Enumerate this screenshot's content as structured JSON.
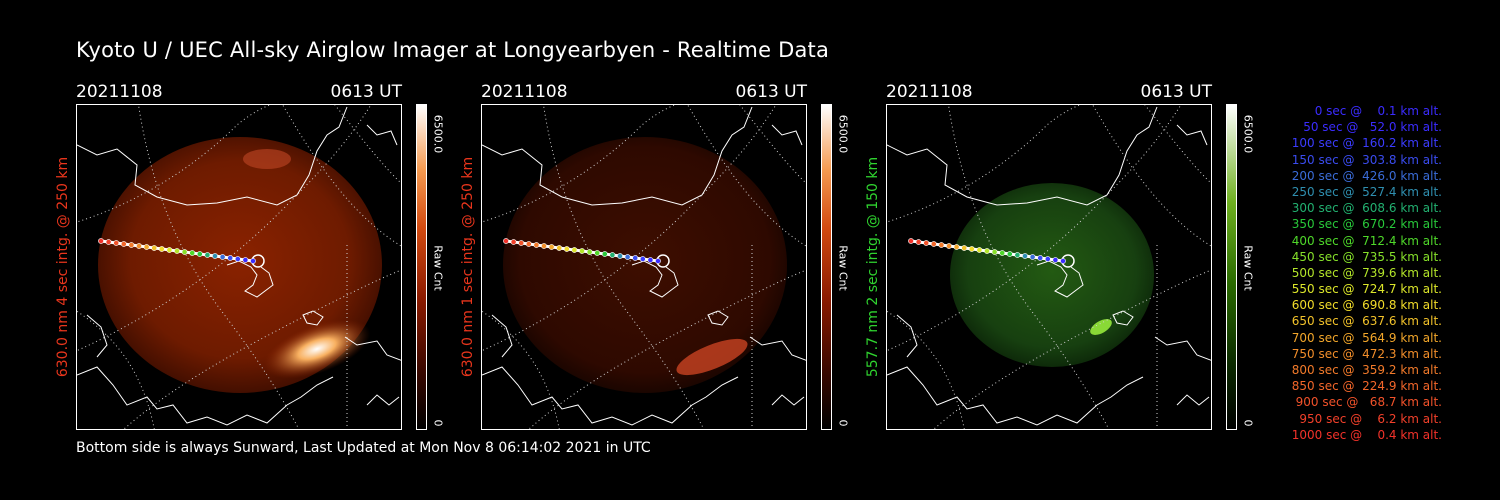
{
  "title": "Kyoto U / UEC All-sky Airglow Imager at Longyearbyen - Realtime Data",
  "panels": [
    {
      "date": "20211108",
      "time": "0613 UT",
      "side_label": "630.0 nm  4 sec intg. @ 250 km",
      "label_color": "#e8351c",
      "cbar_max": "6500.0",
      "cbar_unit": "Raw Cnt",
      "cbar_min": "0",
      "colormap": "red"
    },
    {
      "date": "20211108",
      "time": "0613 UT",
      "side_label": "630.0 nm  1 sec intg. @ 250 km",
      "label_color": "#e8351c",
      "cbar_max": "6500.0",
      "cbar_unit": "Raw Cnt",
      "cbar_min": "0",
      "colormap": "red"
    },
    {
      "date": "20211108",
      "time": "0613 UT",
      "side_label": "557.7 nm  2 sec intg. @ 150 km",
      "label_color": "#2fd32f",
      "cbar_max": "6500.0",
      "cbar_unit": "Raw Cnt",
      "cbar_min": "0",
      "colormap": "green"
    }
  ],
  "legend": [
    {
      "text": "0 sec @    0.1 km alt.",
      "color": "#3b2cff"
    },
    {
      "text": "50 sec @   52.0 km alt.",
      "color": "#3b2cff"
    },
    {
      "text": "100 sec @  160.2 km alt.",
      "color": "#3b3cff"
    },
    {
      "text": "150 sec @  303.8 km alt.",
      "color": "#3a4cf0"
    },
    {
      "text": "200 sec @  426.0 km alt.",
      "color": "#3a6cd8"
    },
    {
      "text": "250 sec @  527.4 km alt.",
      "color": "#2f8fb0"
    },
    {
      "text": "300 sec @  608.6 km alt.",
      "color": "#22b070"
    },
    {
      "text": "350 sec @  670.2 km alt.",
      "color": "#28c83a"
    },
    {
      "text": "400 sec @  712.4 km alt.",
      "color": "#4fd82a"
    },
    {
      "text": "450 sec @  735.5 km alt.",
      "color": "#86e02a"
    },
    {
      "text": "500 sec @  739.6 km alt.",
      "color": "#b4e62a"
    },
    {
      "text": "550 sec @  724.7 km alt.",
      "color": "#dce62a"
    },
    {
      "text": "600 sec @  690.8 km alt.",
      "color": "#f2dc2a"
    },
    {
      "text": "650 sec @  637.6 km alt.",
      "color": "#f2c22a"
    },
    {
      "text": "700 sec @  564.9 km alt.",
      "color": "#f2a62a"
    },
    {
      "text": "750 sec @  472.3 km alt.",
      "color": "#f28e2a"
    },
    {
      "text": "800 sec @  359.2 km alt.",
      "color": "#f27a2a"
    },
    {
      "text": "850 sec @  224.9 km alt.",
      "color": "#f2662a"
    },
    {
      "text": "900 sec @   68.7 km alt.",
      "color": "#f2522a"
    },
    {
      "text": "950 sec @    6.2 km alt.",
      "color": "#f2402a"
    },
    {
      "text": "1000 sec @    0.4 km alt.",
      "color": "#f2322a"
    }
  ],
  "footer": "Bottom side is always Sunward, Last Updated at Mon Nov  8 06:14:02 2021 in UTC"
}
